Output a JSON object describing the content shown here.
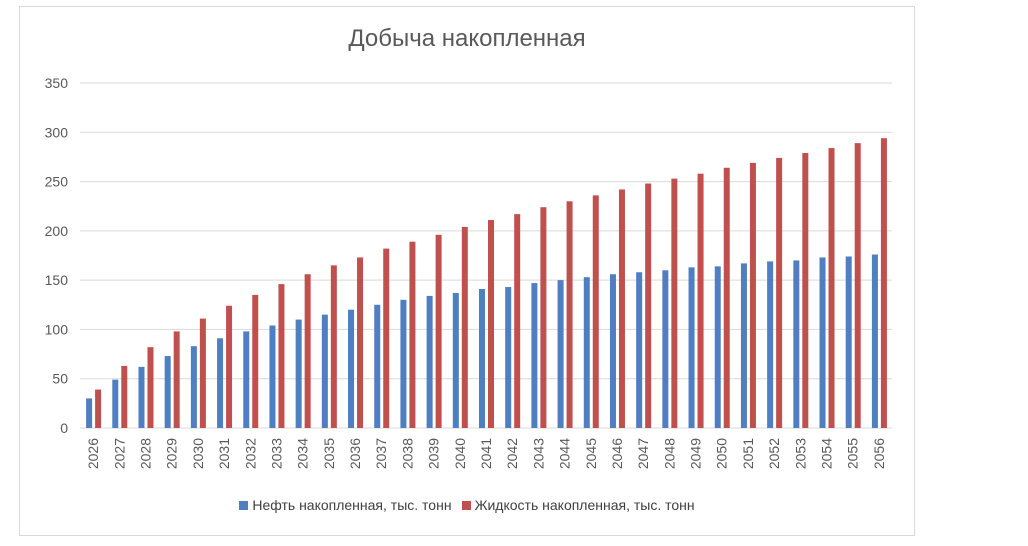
{
  "colors": {
    "oil": "#4f7ec1",
    "liquid": "#c0504d",
    "grid": "#d9d9d9",
    "text": "#595959"
  },
  "chart_data": {
    "type": "bar",
    "title": "Добыча накопленная",
    "xlabel": "",
    "ylabel": "",
    "ylim": [
      0,
      350
    ],
    "yticks": [
      0,
      50,
      100,
      150,
      200,
      250,
      300,
      350
    ],
    "grid": true,
    "legend": "bottom",
    "categories": [
      "2026",
      "2027",
      "2028",
      "2029",
      "2030",
      "2031",
      "2032",
      "2033",
      "2034",
      "2035",
      "2036",
      "2037",
      "2038",
      "2039",
      "2040",
      "2041",
      "2042",
      "2043",
      "2044",
      "2045",
      "2046",
      "2047",
      "2048",
      "2049",
      "2050",
      "2051",
      "2052",
      "2053",
      "2054",
      "2055",
      "2056"
    ],
    "series": [
      {
        "name": "Нефть накопленная, тыс. тонн",
        "values": [
          30,
          49,
          62,
          73,
          83,
          91,
          98,
          104,
          110,
          115,
          120,
          125,
          130,
          134,
          137,
          141,
          143,
          147,
          150,
          153,
          156,
          158,
          160,
          163,
          164,
          167,
          169,
          170,
          173,
          174,
          176
        ]
      },
      {
        "name": "Жидкость накопленная, тыс. тонн",
        "values": [
          39,
          63,
          82,
          98,
          111,
          124,
          135,
          146,
          156,
          165,
          173,
          182,
          189,
          196,
          204,
          211,
          217,
          224,
          230,
          236,
          242,
          248,
          253,
          258,
          264,
          269,
          274,
          279,
          284,
          289,
          294
        ]
      }
    ]
  }
}
